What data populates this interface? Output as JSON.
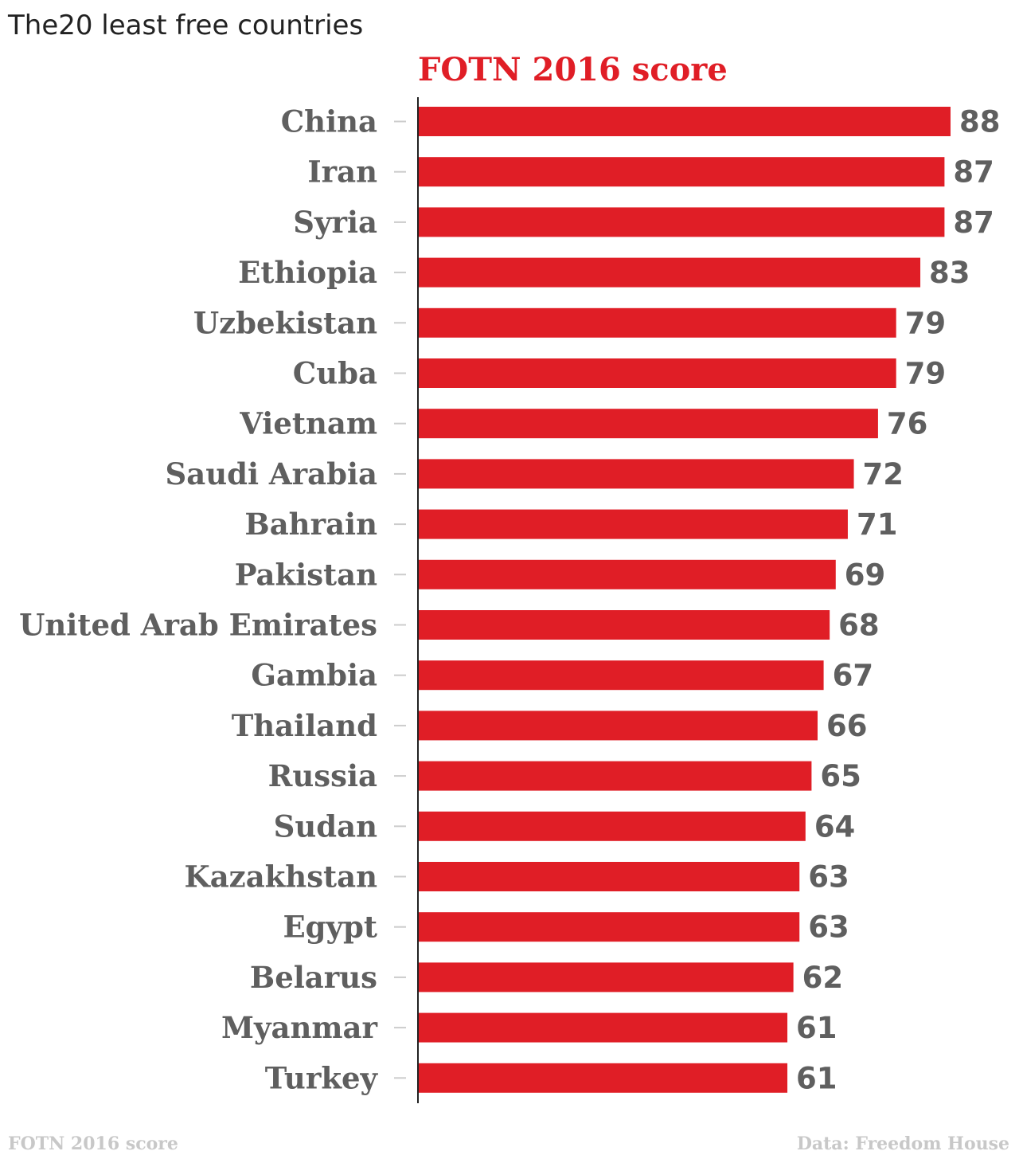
{
  "chart_data": {
    "type": "bar",
    "orientation": "horizontal",
    "title": "The20 least free countries",
    "series_label": "FOTN 2016 score",
    "categories": [
      "China",
      "Iran",
      "Syria",
      "Ethiopia",
      "Uzbekistan",
      "Cuba",
      "Vietnam",
      "Saudi Arabia",
      "Bahrain",
      "Pakistan",
      "United Arab Emirates",
      "Gambia",
      "Thailand",
      "Russia",
      "Sudan",
      "Kazakhstan",
      "Egypt",
      "Belarus",
      "Myanmar",
      "Turkey"
    ],
    "series": [
      {
        "name": "FOTN 2016 score",
        "values": [
          88,
          87,
          87,
          83,
          79,
          79,
          76,
          72,
          71,
          69,
          68,
          67,
          66,
          65,
          64,
          63,
          63,
          62,
          61,
          61
        ]
      }
    ],
    "xlim": [
      0,
      88
    ],
    "grid": false,
    "show_value_labels": true,
    "footer_left": "FOTN 2016 score",
    "footer_right": "Data: Freedom House",
    "colors": {
      "bar": "#e01e26",
      "series_label": "#e01e26",
      "category_text": "#5f5f5f",
      "value_text": "#5f5f5f",
      "footer_text": "#c8c8c8",
      "axis": "#222222",
      "tick": "#cccccc"
    }
  }
}
